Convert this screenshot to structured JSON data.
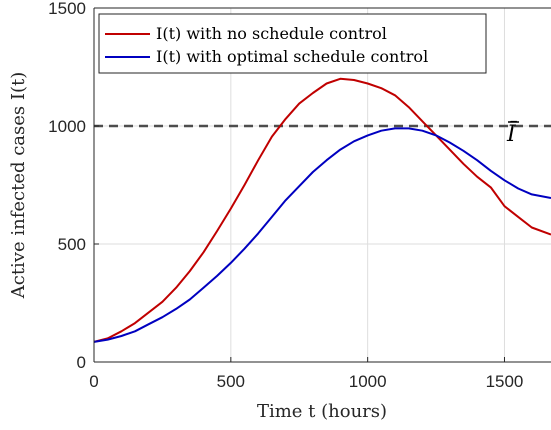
{
  "chart_data": {
    "type": "line",
    "xlabel": "Time t (hours)",
    "ylabel": "Active infected cases I(t)",
    "xlim": [
      0,
      1670
    ],
    "ylim": [
      0,
      1500
    ],
    "xticks": [
      0,
      500,
      1000,
      1500
    ],
    "yticks": [
      0,
      500,
      1000,
      1500
    ],
    "xtick_labels": [
      "0",
      "500",
      "1000",
      "1500"
    ],
    "ytick_labels": [
      "0",
      "500",
      "1000",
      "1500"
    ],
    "grid": true,
    "legend_position": "top-left",
    "reference_line": {
      "y": 1000,
      "label": "Ī",
      "color": "#4d4d4d",
      "style": "dashed"
    },
    "series": [
      {
        "name": "I(t) with no schedule control",
        "color": "#c00000",
        "x": [
          0,
          50,
          100,
          150,
          200,
          250,
          300,
          350,
          400,
          450,
          500,
          550,
          600,
          650,
          700,
          750,
          800,
          850,
          900,
          950,
          1000,
          1050,
          1100,
          1150,
          1200,
          1250,
          1300,
          1350,
          1400,
          1450,
          1500,
          1550,
          1600,
          1670
        ],
        "y": [
          85,
          100,
          130,
          165,
          210,
          255,
          315,
          385,
          465,
          555,
          650,
          750,
          855,
          955,
          1030,
          1095,
          1140,
          1180,
          1200,
          1195,
          1180,
          1160,
          1130,
          1080,
          1020,
          960,
          900,
          840,
          785,
          740,
          660,
          615,
          570,
          540
        ]
      },
      {
        "name": "I(t) with optimal schedule control",
        "color": "#0000c0",
        "x": [
          0,
          50,
          100,
          150,
          200,
          250,
          300,
          350,
          400,
          450,
          500,
          550,
          600,
          650,
          700,
          750,
          800,
          850,
          900,
          950,
          1000,
          1050,
          1100,
          1150,
          1200,
          1250,
          1300,
          1350,
          1400,
          1450,
          1500,
          1550,
          1600,
          1670
        ],
        "y": [
          85,
          95,
          110,
          130,
          160,
          190,
          225,
          265,
          315,
          365,
          420,
          480,
          545,
          615,
          685,
          745,
          805,
          855,
          900,
          935,
          960,
          980,
          990,
          990,
          980,
          960,
          930,
          895,
          855,
          810,
          770,
          735,
          710,
          695
        ]
      }
    ]
  }
}
